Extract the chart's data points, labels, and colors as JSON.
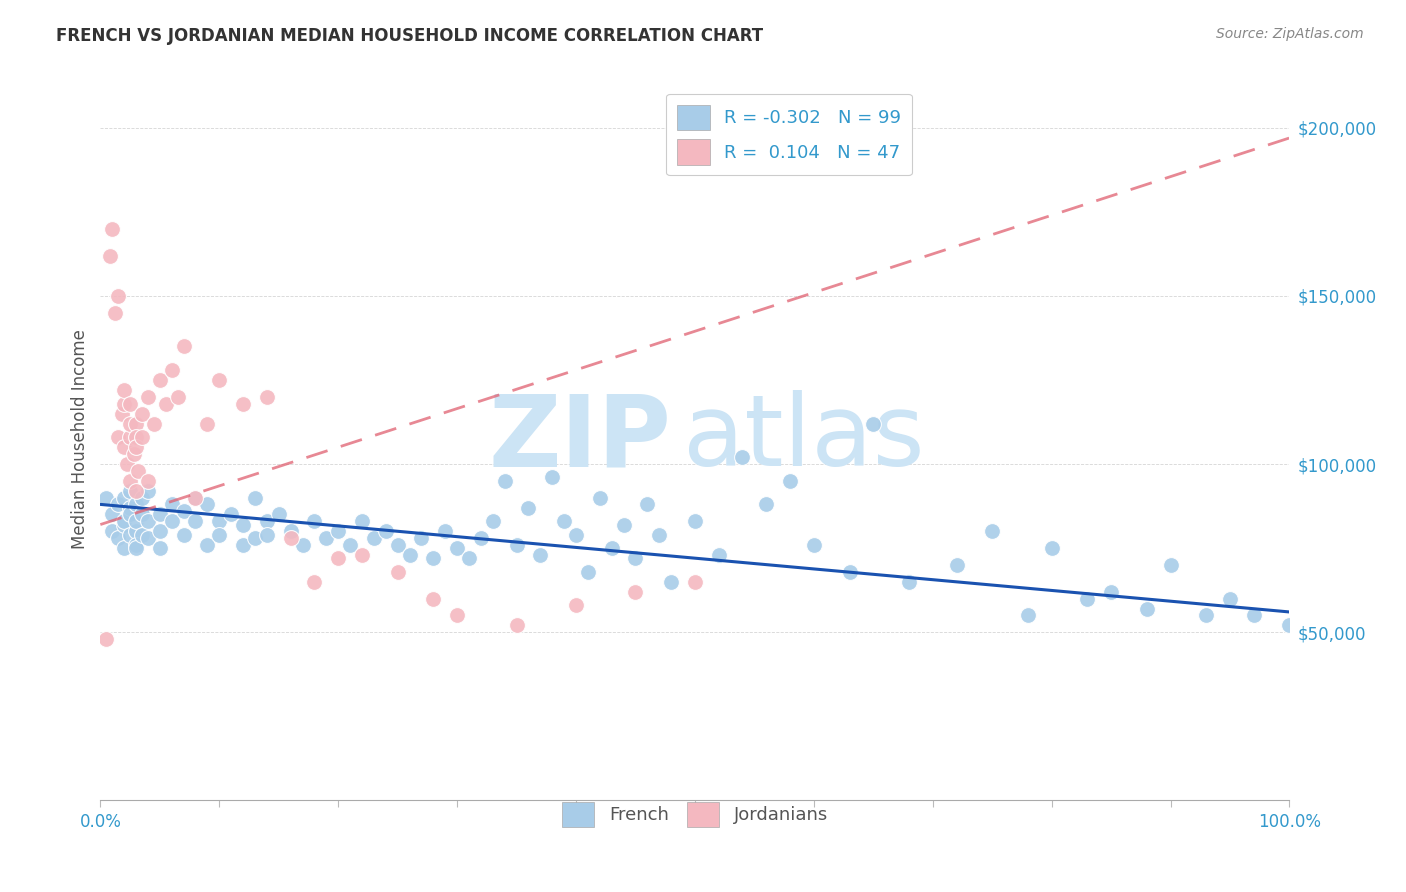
{
  "title": "FRENCH VS JORDANIAN MEDIAN HOUSEHOLD INCOME CORRELATION CHART",
  "source": "Source: ZipAtlas.com",
  "ylabel": "Median Household Income",
  "ytick_labels": [
    "$50,000",
    "$100,000",
    "$150,000",
    "$200,000"
  ],
  "ytick_values": [
    50000,
    100000,
    150000,
    200000
  ],
  "ylim": [
    0,
    215000
  ],
  "xlim": [
    0.0,
    1.0
  ],
  "legend_french": "R = -0.302   N = 99",
  "legend_jordanians": "R =  0.104   N = 47",
  "french_color": "#a8cce8",
  "jordanian_color": "#f4b8c0",
  "french_line_color": "#1a52b0",
  "jordanian_line_color": "#e06070",
  "watermark_zip": "ZIP",
  "watermark_atlas": "atlas",
  "watermark_color": "#cce4f5",
  "french_x": [
    0.005,
    0.01,
    0.01,
    0.015,
    0.015,
    0.02,
    0.02,
    0.02,
    0.02,
    0.025,
    0.025,
    0.025,
    0.025,
    0.03,
    0.03,
    0.03,
    0.03,
    0.03,
    0.035,
    0.035,
    0.035,
    0.04,
    0.04,
    0.04,
    0.05,
    0.05,
    0.05,
    0.06,
    0.06,
    0.07,
    0.07,
    0.08,
    0.08,
    0.09,
    0.09,
    0.1,
    0.1,
    0.11,
    0.12,
    0.12,
    0.13,
    0.13,
    0.14,
    0.14,
    0.15,
    0.16,
    0.17,
    0.18,
    0.19,
    0.2,
    0.21,
    0.22,
    0.23,
    0.24,
    0.25,
    0.26,
    0.27,
    0.28,
    0.29,
    0.3,
    0.31,
    0.32,
    0.33,
    0.34,
    0.35,
    0.36,
    0.37,
    0.38,
    0.39,
    0.4,
    0.41,
    0.42,
    0.43,
    0.44,
    0.45,
    0.46,
    0.47,
    0.48,
    0.5,
    0.52,
    0.54,
    0.56,
    0.58,
    0.6,
    0.63,
    0.65,
    0.68,
    0.72,
    0.75,
    0.78,
    0.8,
    0.83,
    0.85,
    0.88,
    0.9,
    0.93,
    0.95,
    0.97,
    1.0
  ],
  "french_y": [
    90000,
    85000,
    80000,
    78000,
    88000,
    82000,
    75000,
    90000,
    83000,
    87000,
    79000,
    85000,
    92000,
    80000,
    76000,
    88000,
    83000,
    75000,
    85000,
    79000,
    90000,
    83000,
    78000,
    92000,
    85000,
    80000,
    75000,
    88000,
    83000,
    86000,
    79000,
    90000,
    83000,
    76000,
    88000,
    83000,
    79000,
    85000,
    76000,
    82000,
    78000,
    90000,
    83000,
    79000,
    85000,
    80000,
    76000,
    83000,
    78000,
    80000,
    76000,
    83000,
    78000,
    80000,
    76000,
    73000,
    78000,
    72000,
    80000,
    75000,
    72000,
    78000,
    83000,
    95000,
    76000,
    87000,
    73000,
    96000,
    83000,
    79000,
    68000,
    90000,
    75000,
    82000,
    72000,
    88000,
    79000,
    65000,
    83000,
    73000,
    102000,
    88000,
    95000,
    76000,
    68000,
    112000,
    65000,
    70000,
    80000,
    55000,
    75000,
    60000,
    62000,
    57000,
    70000,
    55000,
    60000,
    55000,
    52000
  ],
  "jordanian_x": [
    0.005,
    0.008,
    0.01,
    0.012,
    0.015,
    0.015,
    0.018,
    0.02,
    0.02,
    0.02,
    0.022,
    0.025,
    0.025,
    0.025,
    0.025,
    0.028,
    0.03,
    0.03,
    0.03,
    0.03,
    0.032,
    0.035,
    0.035,
    0.04,
    0.04,
    0.045,
    0.05,
    0.055,
    0.06,
    0.065,
    0.07,
    0.08,
    0.09,
    0.1,
    0.12,
    0.14,
    0.16,
    0.18,
    0.2,
    0.22,
    0.25,
    0.28,
    0.3,
    0.35,
    0.4,
    0.45,
    0.5
  ],
  "jordanian_y": [
    48000,
    162000,
    170000,
    145000,
    150000,
    108000,
    115000,
    118000,
    105000,
    122000,
    100000,
    108000,
    112000,
    118000,
    95000,
    103000,
    112000,
    108000,
    92000,
    105000,
    98000,
    108000,
    115000,
    120000,
    95000,
    112000,
    125000,
    118000,
    128000,
    120000,
    135000,
    90000,
    112000,
    125000,
    118000,
    120000,
    78000,
    65000,
    72000,
    73000,
    68000,
    60000,
    55000,
    52000,
    58000,
    62000,
    65000
  ]
}
